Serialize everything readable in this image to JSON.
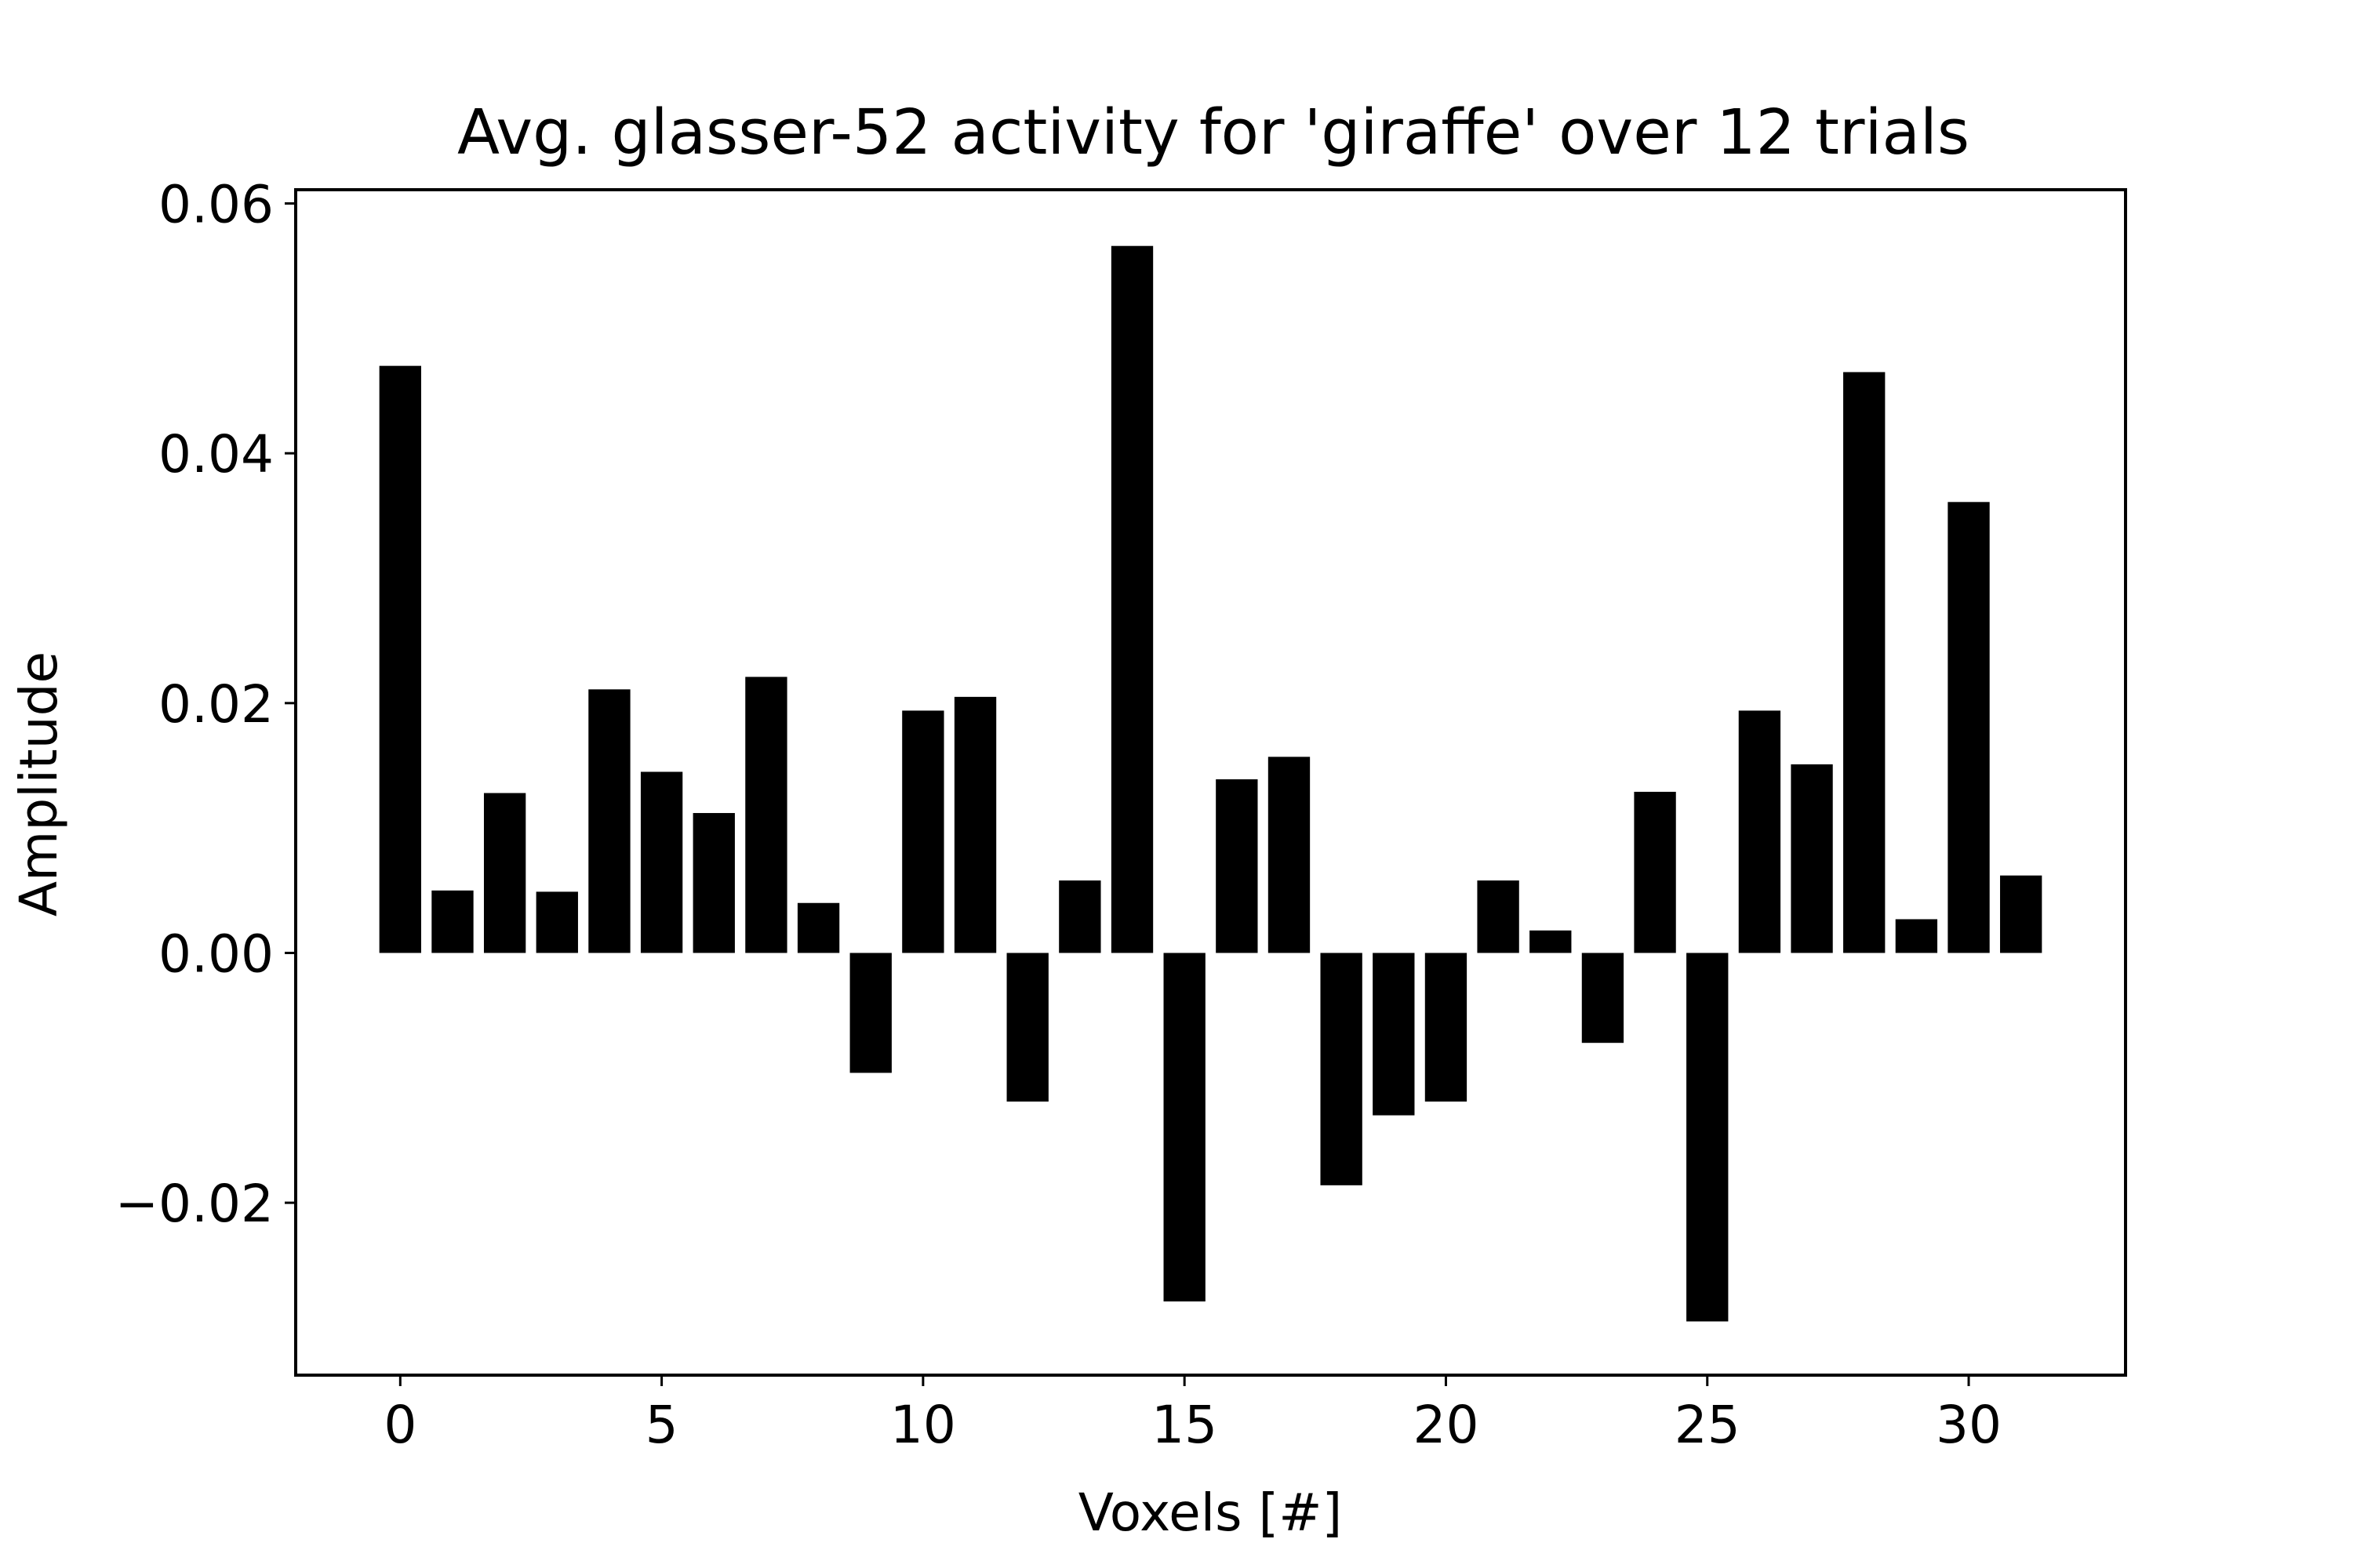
{
  "chart_data": {
    "type": "bar",
    "title": "Avg. glasser-52 activity for 'giraffe' over 12 trials",
    "xlabel": "Voxels [#]",
    "ylabel": "Amplitude",
    "x": [
      0,
      1,
      2,
      3,
      4,
      5,
      6,
      7,
      8,
      9,
      10,
      11,
      12,
      13,
      14,
      15,
      16,
      17,
      18,
      19,
      20,
      21,
      22,
      23,
      24,
      25,
      26,
      27,
      28,
      29,
      30,
      31
    ],
    "values": [
      0.047,
      0.005,
      0.0128,
      0.0049,
      0.0211,
      0.0145,
      0.0112,
      0.0221,
      0.004,
      -0.0096,
      0.0194,
      0.0205,
      -0.0119,
      0.0058,
      0.0566,
      -0.0279,
      0.0139,
      0.0157,
      -0.0186,
      -0.013,
      -0.0119,
      0.0058,
      0.0018,
      -0.0072,
      0.0129,
      -0.0295,
      0.0194,
      0.0151,
      0.0465,
      0.0027,
      0.0361,
      0.0062
    ],
    "xlim": [
      -2,
      33
    ],
    "ylim": [
      -0.0338,
      0.0611
    ],
    "xticks": [
      0,
      5,
      10,
      15,
      20,
      25,
      30
    ],
    "xtick_labels": [
      "0",
      "5",
      "10",
      "15",
      "20",
      "25",
      "30"
    ],
    "yticks": [
      -0.02,
      0.0,
      0.02,
      0.04,
      0.06
    ],
    "ytick_labels": [
      "−0.02",
      "0.00",
      "0.02",
      "0.04",
      "0.06"
    ],
    "bar_color": "#000000",
    "grid": false,
    "legend": "none"
  }
}
